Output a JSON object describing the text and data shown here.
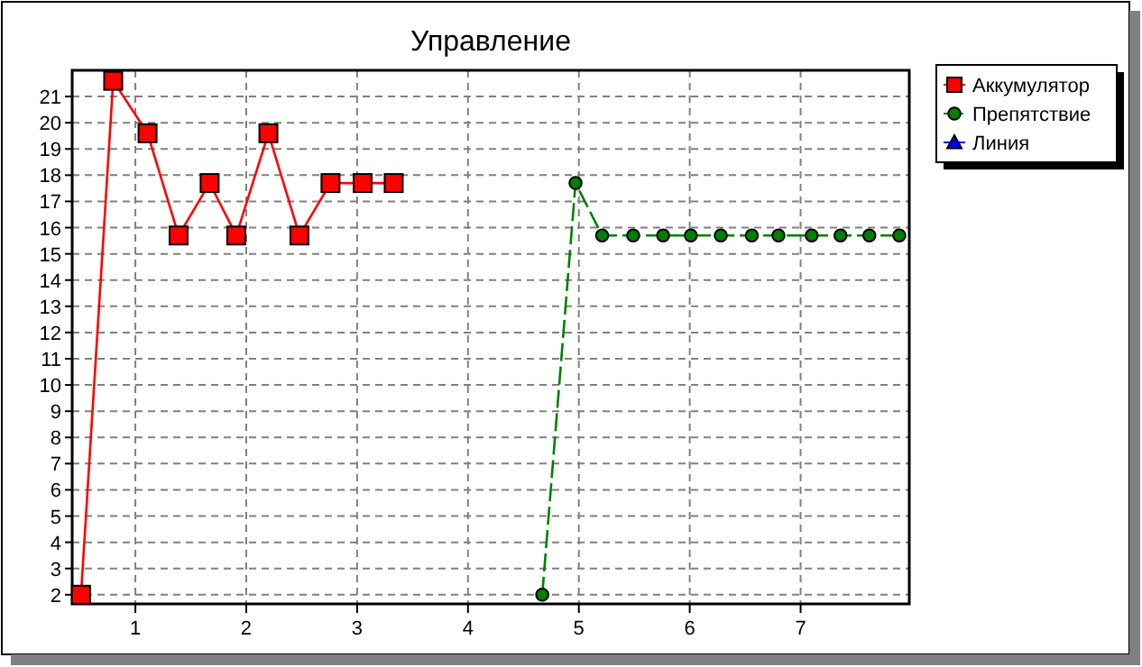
{
  "chart_data": {
    "type": "line",
    "title": "Управление",
    "xlim": [
      0.43,
      7.98
    ],
    "ylim": [
      1.65,
      22
    ],
    "xticks": [
      1,
      2,
      3,
      4,
      5,
      6,
      7
    ],
    "yticks": [
      2,
      3,
      4,
      5,
      6,
      7,
      8,
      9,
      10,
      11,
      12,
      13,
      14,
      15,
      16,
      17,
      18,
      19,
      20,
      21
    ],
    "grid": true,
    "legend": "top right",
    "series": [
      {
        "name": "Аккумулятор",
        "color": "#ff0000",
        "marker": "square",
        "line_style": "solid",
        "x": [
          0.51,
          0.8,
          1.11,
          1.39,
          1.67,
          1.91,
          2.2,
          2.48,
          2.76,
          3.05,
          3.33
        ],
        "values": [
          2,
          21.6,
          19.6,
          15.7,
          17.7,
          15.7,
          19.6,
          15.7,
          17.7,
          17.7,
          17.7
        ]
      },
      {
        "name": "Препятствие",
        "color": "#008000",
        "marker": "circle",
        "line_style": "dashed",
        "x": [
          4.67,
          4.97,
          5.21,
          5.49,
          5.76,
          6.01,
          6.28,
          6.56,
          6.8,
          7.1,
          7.36,
          7.62,
          7.89
        ],
        "values": [
          2,
          17.7,
          15.7,
          15.7,
          15.7,
          15.7,
          15.7,
          15.7,
          15.7,
          15.7,
          15.7,
          15.7,
          15.7
        ]
      },
      {
        "name": "Линия",
        "color": "#0000ff",
        "marker": "triangle"
      }
    ]
  }
}
